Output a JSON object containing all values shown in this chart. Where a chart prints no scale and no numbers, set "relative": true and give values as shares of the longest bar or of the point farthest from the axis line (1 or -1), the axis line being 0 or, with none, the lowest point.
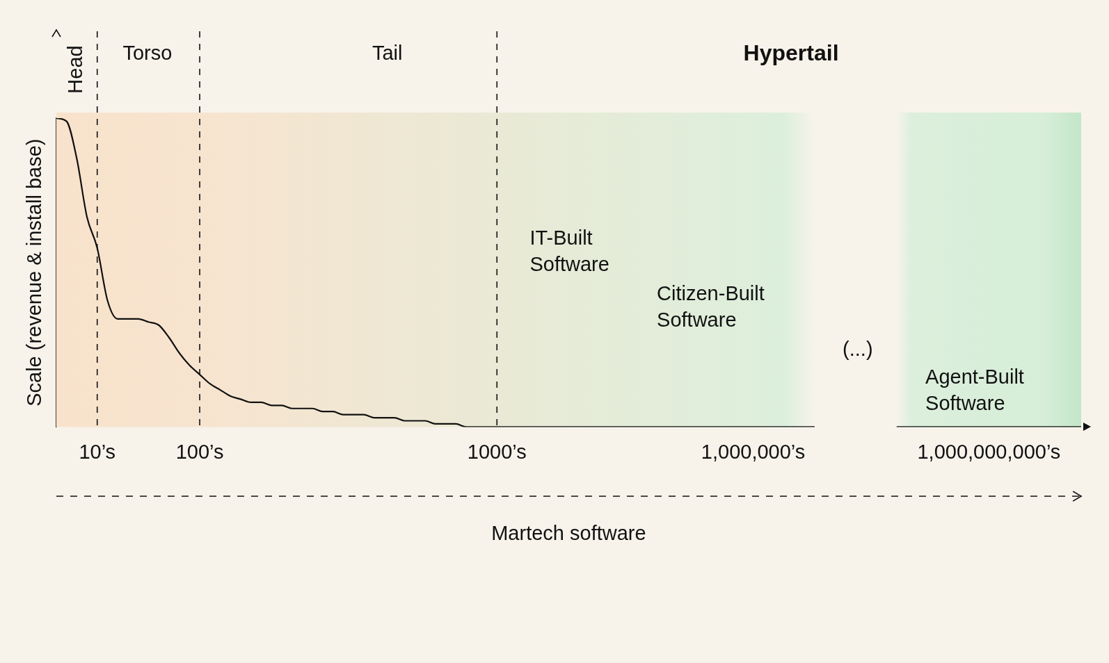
{
  "chart_data": {
    "type": "line",
    "relative": true,
    "xlabel": "Martech software",
    "ylabel": "Scale (revenue & install base)",
    "categories": [
      null,
      null,
      null,
      null,
      "10’s",
      null,
      null,
      null,
      null,
      null,
      null,
      null,
      null,
      null,
      "100’s",
      null,
      null,
      null,
      null,
      null,
      null,
      null,
      null,
      null,
      null,
      null,
      null,
      null,
      null,
      null,
      null,
      null,
      null,
      null,
      null,
      null,
      null,
      null,
      null,
      null,
      null,
      null,
      null,
      "1000’s",
      null,
      null,
      null,
      null,
      null,
      null,
      null,
      null,
      null,
      null,
      null,
      null,
      null,
      null,
      null,
      null,
      null,
      null,
      null,
      null,
      null,
      null,
      null,
      null,
      "1,000,000’s",
      null,
      null,
      null,
      null,
      null,
      null,
      null,
      null,
      null,
      null,
      null,
      null,
      null,
      null,
      null,
      null,
      null,
      null,
      null,
      null,
      null,
      null,
      "1,000,000,000’s",
      null,
      null,
      null,
      null,
      null,
      null,
      null,
      null,
      null
    ],
    "series": [
      {
        "color": "#111111",
        "values": [
          1,
          0.99,
          0.87,
          0.68,
          0.58,
          0.41,
          0.35,
          0.35,
          0.35,
          0.34,
          0.33,
          0.29,
          0.24,
          0.2,
          0.17,
          0.14,
          0.12,
          0.1,
          0.09,
          0.08,
          0.08,
          0.07,
          0.07,
          0.06,
          0.06,
          0.06,
          0.05,
          0.05,
          0.04,
          0.04,
          0.04,
          0.03,
          0.03,
          0.03,
          0.02,
          0.02,
          0.02,
          0.01,
          0.01,
          0.01,
          0,
          0,
          0,
          0,
          0,
          0,
          0,
          0,
          0,
          0,
          0,
          0,
          0,
          0,
          0,
          0,
          0,
          0,
          0,
          0,
          0,
          0,
          0,
          0,
          0,
          0,
          0,
          0,
          0,
          0,
          0,
          0,
          0,
          0,
          0,
          null,
          null,
          null,
          null,
          null,
          null,
          null,
          0,
          0,
          0,
          0,
          0,
          0,
          0,
          0,
          0,
          0,
          0,
          0,
          0,
          0,
          0,
          0,
          0,
          0,
          0
        ]
      }
    ],
    "ref_lines": [
      {
        "axis": "x",
        "value": "10’s",
        "line_style": "dashed"
      },
      {
        "axis": "x",
        "value": "100’s",
        "line_style": "dashed"
      },
      {
        "axis": "x",
        "value": "1000’s",
        "line_style": "dashed"
      }
    ],
    "annotations": [
      "Head",
      "Torso",
      "Tail",
      "Hypertail",
      "IT-Built Software",
      "Citizen-Built Software",
      "(...)",
      "Agent-Built Software"
    ],
    "legend": false,
    "grid": false,
    "marker": "none",
    "line_style": "solid"
  }
}
